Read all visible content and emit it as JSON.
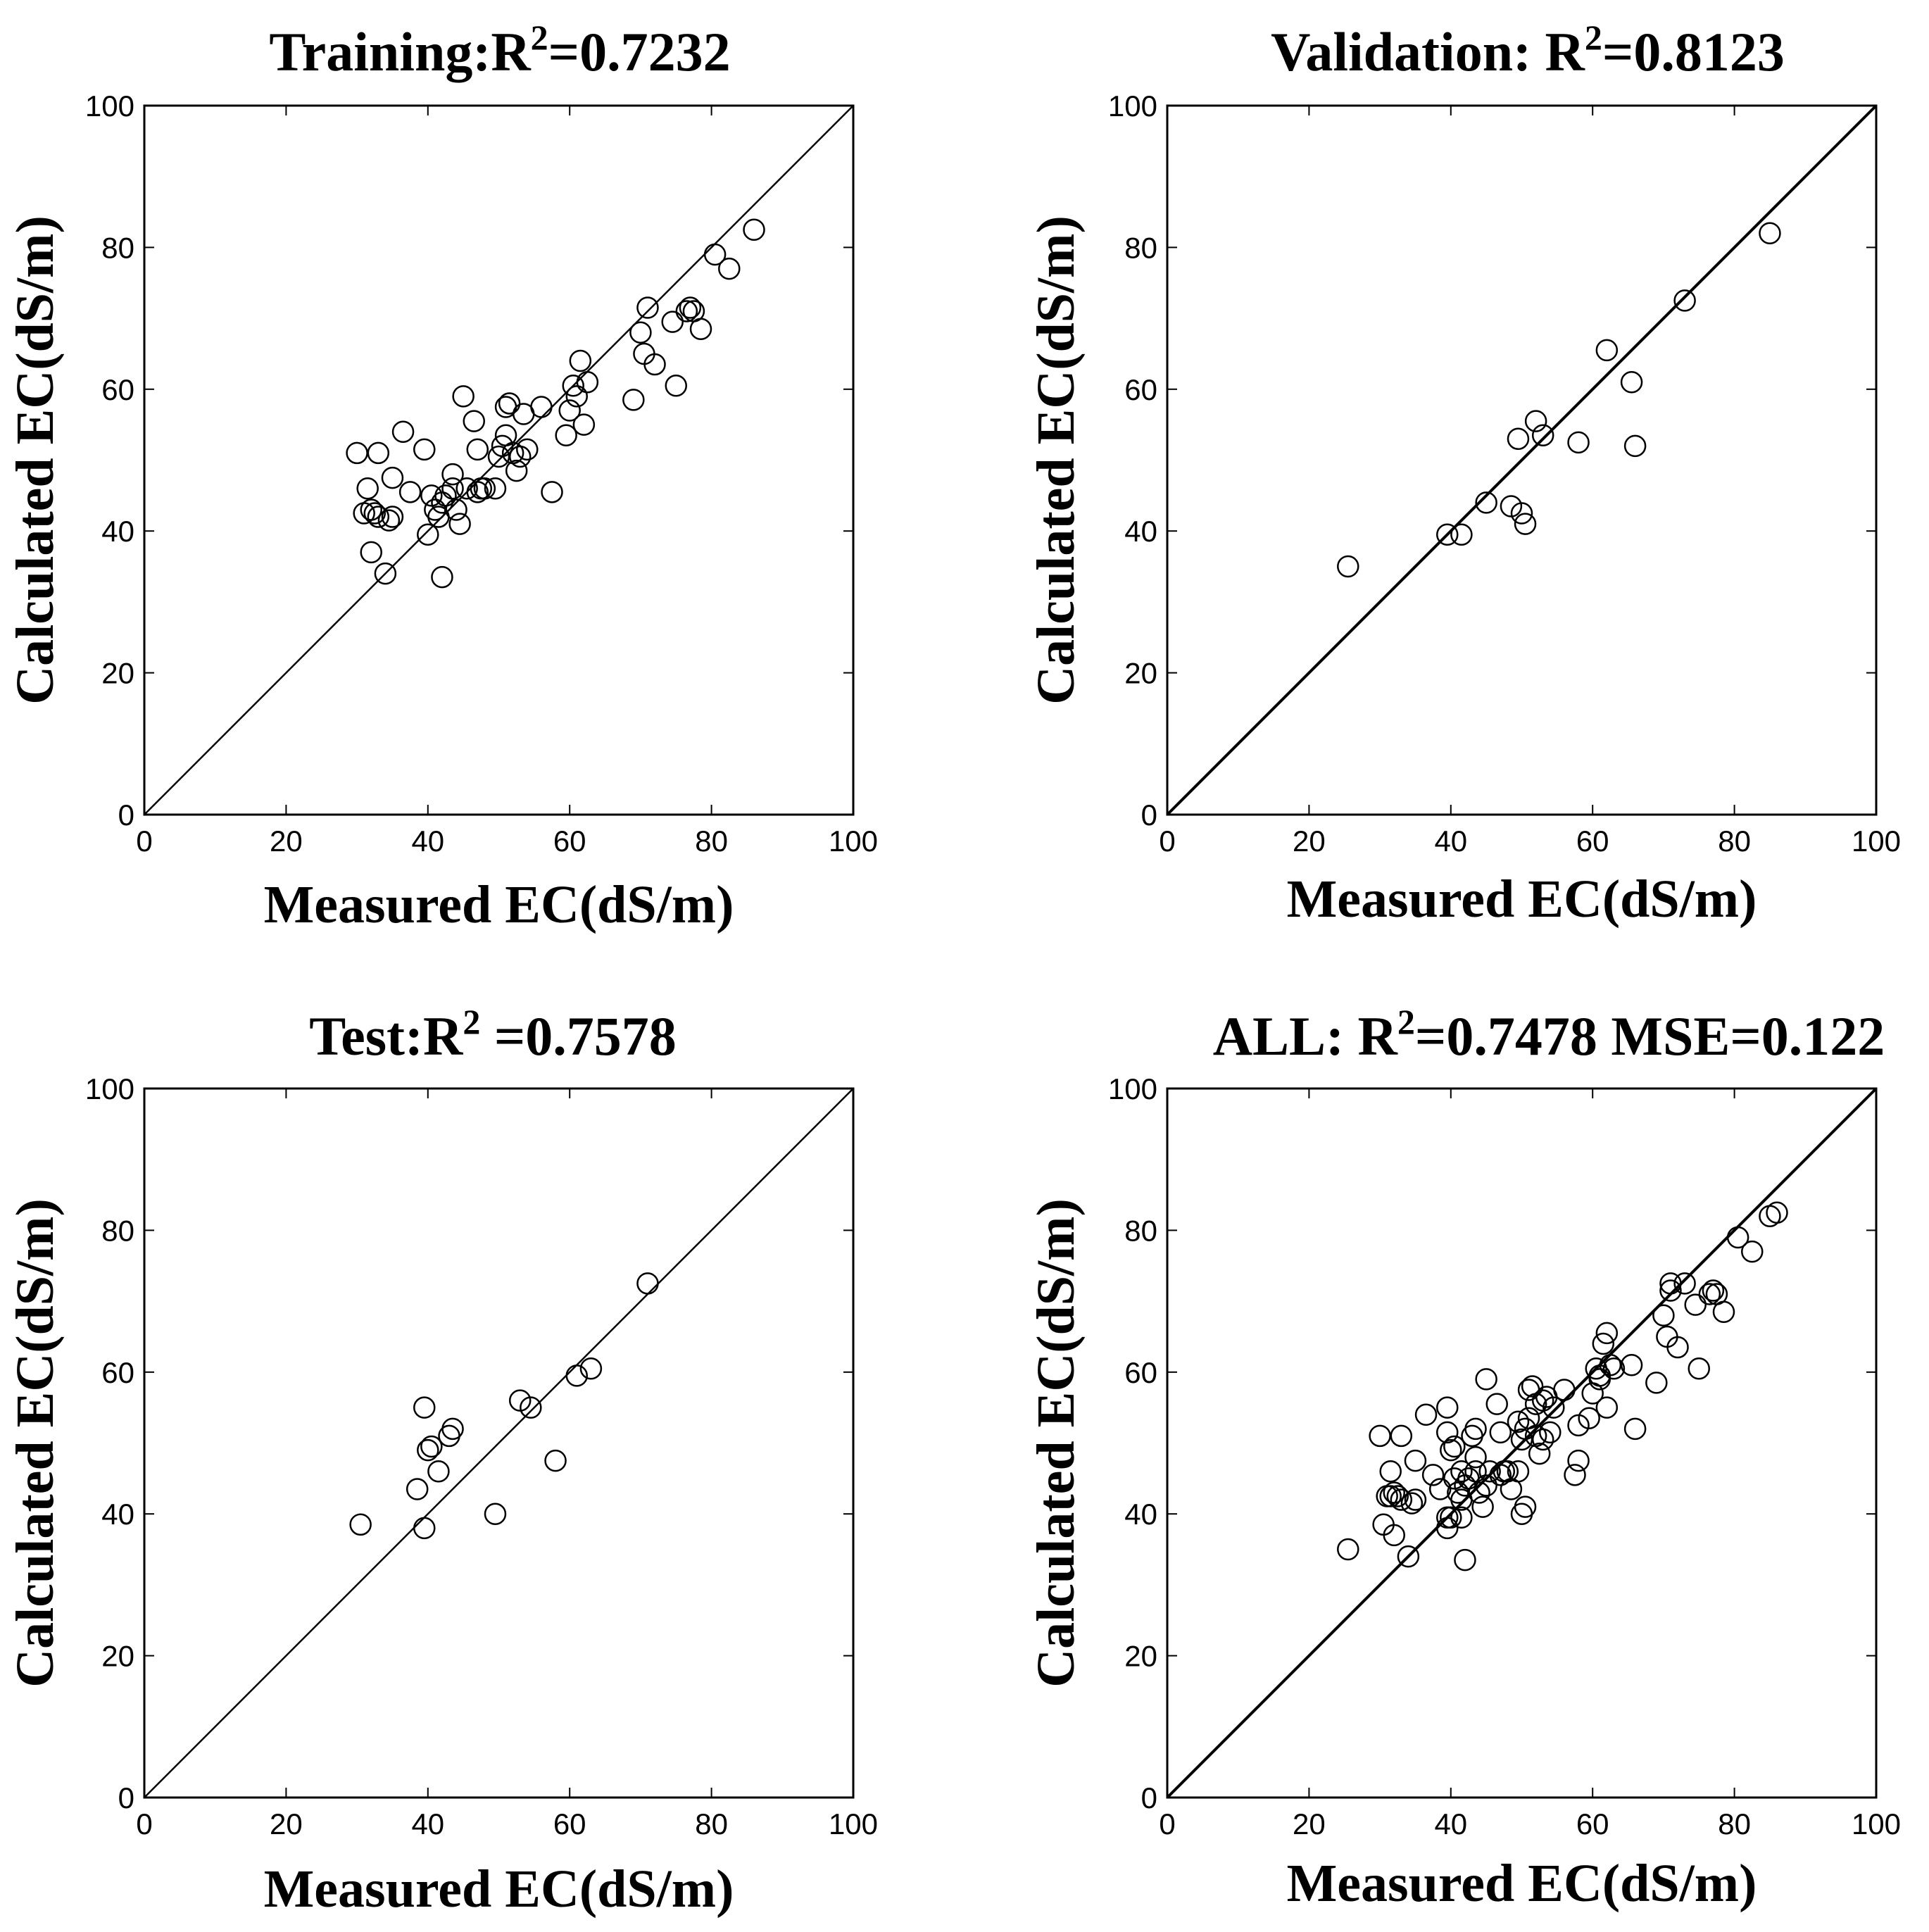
{
  "chart_data": [
    {
      "type": "scatter",
      "title_main": "Training:R",
      "title_sup": "2",
      "title_rest": "=0.7232",
      "xlabel": "Measured EC(dS/m)",
      "ylabel": "Calculated EC(dS/m)",
      "xlim": [
        0,
        100
      ],
      "ylim": [
        0,
        100
      ],
      "xticks": [
        "0",
        "20",
        "40",
        "60",
        "80",
        "100"
      ],
      "yticks": [
        "0",
        "20",
        "40",
        "60",
        "80",
        "100"
      ],
      "tick_values": [
        0,
        20,
        40,
        60,
        80,
        100
      ],
      "reference_line": [
        [
          0,
          0
        ],
        [
          100,
          100
        ]
      ],
      "marker": "open-circle",
      "color": "#000000",
      "x": [
        30,
        31,
        31.5,
        32,
        32,
        32.5,
        33,
        33,
        34,
        34.5,
        35,
        35,
        36.5,
        37.5,
        39.5,
        40,
        40.5,
        41,
        41.5,
        42,
        42,
        42.5,
        43.5,
        43.5,
        44,
        44.5,
        45,
        45.5,
        46.5,
        47,
        47,
        47.5,
        48,
        49.5,
        50,
        50.5,
        51,
        51,
        51.5,
        52,
        52.5,
        53,
        53.5,
        54,
        56,
        57.5,
        59.5,
        60,
        60.5,
        61,
        61.5,
        62,
        62.5,
        69,
        70,
        70.5,
        71,
        72,
        74.5,
        75,
        76.5,
        77,
        77.5,
        78.5,
        80.5,
        82.5,
        86
      ],
      "y": [
        51,
        42.5,
        46,
        37,
        43,
        42.5,
        42,
        51,
        34,
        41.5,
        42,
        47.5,
        54,
        45.5,
        51.5,
        39.5,
        45,
        43,
        42,
        33.5,
        44,
        45,
        48,
        46,
        43,
        41,
        59,
        46,
        55.5,
        45.5,
        51.5,
        46,
        46,
        46,
        50.5,
        52,
        57.5,
        53.5,
        58,
        51,
        48.5,
        50.5,
        56.5,
        51.5,
        57.5,
        45.5,
        53.5,
        57,
        60.5,
        59,
        64,
        55,
        61,
        58.5,
        68,
        65,
        71.5,
        63.5,
        69.5,
        60.5,
        71,
        71.5,
        71,
        68.5,
        79,
        77,
        82.5
      ]
    },
    {
      "type": "scatter",
      "title_main": "Validation: R",
      "title_sup": "2",
      "title_rest": "=0.8123",
      "xlabel": "Measured EC(dS/m)",
      "ylabel": "Calculated EC(dS/m)",
      "xlim": [
        0,
        100
      ],
      "ylim": [
        0,
        100
      ],
      "xticks": [
        "0",
        "20",
        "40",
        "60",
        "80",
        "100"
      ],
      "yticks": [
        "0",
        "20",
        "40",
        "60",
        "80",
        "100"
      ],
      "tick_values": [
        0,
        20,
        40,
        60,
        80,
        100
      ],
      "reference_line": [
        [
          0,
          0
        ],
        [
          100,
          100
        ]
      ],
      "marker": "open-circle",
      "color": "#000000",
      "x": [
        25.5,
        39.5,
        41.5,
        45,
        48.5,
        49.5,
        50,
        50.5,
        52,
        53,
        58,
        62,
        65.5,
        66,
        73,
        85
      ],
      "y": [
        35,
        39.5,
        39.5,
        44,
        43.5,
        53,
        42.5,
        41,
        55.5,
        53.5,
        52.5,
        65.5,
        61,
        52,
        72.5,
        82
      ]
    },
    {
      "type": "scatter",
      "title_main": "Test:R",
      "title_sup": "2",
      "title_rest": " =0.7578",
      "xlabel": "Measured EC(dS/m)",
      "ylabel": "Calculated EC(dS/m)",
      "xlim": [
        0,
        100
      ],
      "ylim": [
        0,
        100
      ],
      "xticks": [
        "0",
        "20",
        "40",
        "60",
        "80",
        "100"
      ],
      "yticks": [
        "0",
        "20",
        "40",
        "60",
        "80",
        "100"
      ],
      "tick_values": [
        0,
        20,
        40,
        60,
        80,
        100
      ],
      "reference_line": [
        [
          0,
          0
        ],
        [
          100,
          100
        ]
      ],
      "marker": "open-circle",
      "color": "#000000",
      "x": [
        30.5,
        38.5,
        39.5,
        39.5,
        40,
        40.5,
        41.5,
        43,
        43.5,
        49.5,
        53,
        54.5,
        58,
        61,
        63,
        71
      ],
      "y": [
        38.5,
        43.5,
        38,
        55,
        49,
        49.5,
        46,
        51,
        52,
        40,
        56,
        55,
        47.5,
        59.5,
        60.5,
        72.5
      ]
    },
    {
      "type": "scatter",
      "title_main": "ALL: R",
      "title_sup": "2",
      "title_rest": "=0.7478 MSE=0.122",
      "xlabel": "Measured EC(dS/m)",
      "ylabel": "Calculated EC(dS/m)",
      "xlim": [
        0,
        100
      ],
      "ylim": [
        0,
        100
      ],
      "xticks": [
        "0",
        "20",
        "40",
        "60",
        "80",
        "100"
      ],
      "yticks": [
        "0",
        "20",
        "40",
        "60",
        "80",
        "100"
      ],
      "tick_values": [
        0,
        20,
        40,
        60,
        80,
        100
      ],
      "reference_line": [
        [
          0,
          0
        ],
        [
          100,
          100
        ]
      ],
      "marker": "open-circle",
      "color": "#000000",
      "x": [
        25.5,
        30,
        30.5,
        31,
        31.5,
        31.5,
        32,
        32,
        32.5,
        33,
        33,
        34,
        34.5,
        35,
        35,
        36.5,
        37.5,
        38.5,
        39.5,
        39.5,
        39.5,
        39.5,
        40,
        40,
        40.5,
        40.5,
        41,
        41.5,
        41.5,
        41.5,
        42,
        42,
        42.5,
        43,
        43.5,
        43.5,
        43.5,
        44,
        44.5,
        45,
        45,
        45.5,
        46.5,
        47,
        47,
        47.5,
        48,
        48.5,
        49.5,
        49.5,
        50,
        50,
        50.5,
        50.5,
        51,
        51,
        51.5,
        52,
        52,
        52.5,
        53,
        53,
        53.5,
        54,
        54.5,
        56,
        57.5,
        58,
        58,
        59.5,
        60,
        60.5,
        61,
        61,
        61.5,
        62,
        62,
        62.5,
        63,
        65.5,
        66,
        69,
        70,
        70.5,
        71,
        71,
        72,
        73,
        74.5,
        75,
        76.5,
        77,
        77.5,
        78.5,
        80.5,
        82.5,
        85,
        86
      ],
      "y": [
        35,
        51,
        38.5,
        42.5,
        46,
        42.5,
        37,
        43,
        42.5,
        42,
        51,
        34,
        41.5,
        42,
        47.5,
        54,
        45.5,
        43.5,
        51.5,
        38,
        55,
        39.5,
        39.5,
        49,
        45,
        49.5,
        43,
        42,
        46,
        39.5,
        33.5,
        44,
        45,
        51,
        48,
        46,
        52,
        43,
        41,
        59,
        44,
        46,
        55.5,
        45.5,
        51.5,
        46,
        46,
        43.5,
        46,
        53,
        50.5,
        40,
        52,
        41,
        57.5,
        53.5,
        58,
        51,
        55.5,
        48.5,
        50.5,
        56,
        56.5,
        51.5,
        55,
        57.5,
        45.5,
        47.5,
        52.5,
        53.5,
        57,
        60.5,
        59,
        59.5,
        64,
        55,
        65.5,
        61,
        60.5,
        61,
        52,
        58.5,
        68,
        65,
        71.5,
        72.5,
        63.5,
        72.5,
        69.5,
        60.5,
        71,
        71.5,
        71,
        68.5,
        79,
        77,
        82,
        82.5
      ]
    }
  ]
}
